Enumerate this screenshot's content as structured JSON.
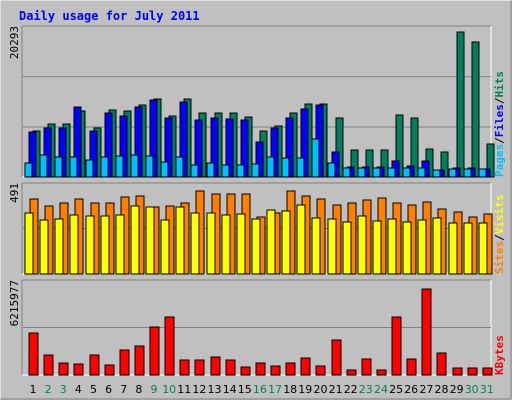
{
  "colors": {
    "background": "#c0c0c0",
    "title": "#0000ff",
    "hits": "#00805c",
    "files": "#0000ff",
    "pages": "#00c0ff",
    "visits": "#ffff00",
    "sites": "#ff8000",
    "kbytes": "#ff0000",
    "weekend_label": "#00805c",
    "weekday_label": "#000000",
    "slash": "#000000"
  },
  "chart_data": {
    "type": "bar",
    "title": "Daily usage for July 2011",
    "categories": [
      "1",
      "2",
      "3",
      "4",
      "5",
      "6",
      "7",
      "8",
      "9",
      "10",
      "11",
      "12",
      "13",
      "14",
      "15",
      "16",
      "17",
      "18",
      "19",
      "20",
      "21",
      "22",
      "23",
      "24",
      "25",
      "26",
      "27",
      "28",
      "29",
      "30",
      "31"
    ],
    "weekend_days": [
      "2",
      "3",
      "9",
      "10",
      "16",
      "17",
      "23",
      "24",
      "30",
      "31"
    ],
    "panels": [
      {
        "id": "hits_files_pages",
        "max_label": "20293",
        "ymax": 20293,
        "legend": [
          {
            "text": "Pages",
            "color": "#00c0ff"
          },
          {
            "text": "/",
            "color": "#000000"
          },
          {
            "text": "Files",
            "color": "#0000ff"
          },
          {
            "text": "/",
            "color": "#000000"
          },
          {
            "text": "Hits",
            "color": "#00805c"
          }
        ],
        "series": [
          {
            "name": "Hits",
            "color": "#00805c",
            "values": [
              6400,
              7300,
              7300,
              9100,
              6800,
              9300,
              9100,
              10000,
              10800,
              8400,
              10800,
              8800,
              8800,
              8800,
              8300,
              6400,
              7100,
              8800,
              10100,
              10100,
              8200,
              3700,
              3700,
              3700,
              8600,
              8200,
              3900,
              3500,
              20000,
              18700,
              4500
            ]
          },
          {
            "name": "Files",
            "color": "#0000ff",
            "values": [
              6200,
              6800,
              6800,
              9600,
              6300,
              8800,
              8400,
              9700,
              10600,
              8100,
              10300,
              7900,
              8200,
              8000,
              7900,
              4900,
              6700,
              8100,
              9400,
              9900,
              3400,
              1400,
              1400,
              1400,
              2200,
              1500,
              2200,
              1000,
              1200,
              1200,
              1100
            ]
          },
          {
            "name": "Pages",
            "color": "#00c0ff",
            "values": [
              1900,
              3000,
              2700,
              2700,
              2300,
              2700,
              2900,
              3000,
              2900,
              2100,
              2800,
              1700,
              1900,
              1700,
              1600,
              1800,
              2700,
              2600,
              2600,
              5300,
              1900,
              1200,
              1200,
              1200,
              1300,
              1200,
              1200,
              1000,
              1100,
              1100,
              1100
            ]
          }
        ]
      },
      {
        "id": "visits_sites",
        "max_label": "491",
        "ymax": 491,
        "legend": [
          {
            "text": "Sites",
            "color": "#ff8000"
          },
          {
            "text": "/",
            "color": "#000000"
          },
          {
            "text": "Visits",
            "color": "#ffff00"
          }
        ],
        "series": [
          {
            "name": "Sites",
            "color": "#ff8000",
            "values": [
              422,
              382,
              403,
              422,
              403,
              403,
              433,
              443,
              376,
              382,
              402,
              470,
              453,
              453,
              452,
              321,
              346,
              470,
              443,
              421,
              391,
              399,
              419,
              427,
              403,
              387,
              407,
              367,
              351,
              321,
              337
            ]
          },
          {
            "name": "Visits",
            "color": "#ffff00",
            "values": [
              346,
              305,
              312,
              335,
              328,
              325,
              335,
              382,
              380,
              302,
              380,
              342,
              342,
              332,
              338,
              310,
              362,
              357,
              388,
              316,
              312,
              294,
              327,
              300,
              310,
              295,
              306,
              315,
              290,
              286,
              290
            ]
          }
        ]
      },
      {
        "id": "kbytes",
        "max_label": "6215977",
        "ymax": 6215977,
        "legend": [
          {
            "text": "KBytes",
            "color": "#ff0000"
          }
        ],
        "series": [
          {
            "name": "KBytes",
            "color": "#ff0000",
            "values": [
              2900000,
              1350000,
              850000,
              780000,
              1350000,
              700000,
              1680000,
              2000000,
              3270000,
              3980000,
              1000000,
              1040000,
              1260000,
              1000000,
              520000,
              810000,
              600000,
              850000,
              1130000,
              620000,
              2380000,
              340000,
              1090000,
              360000,
              3990000,
              1070000,
              5900000,
              1520000,
              460000,
              460000,
              460000
            ]
          }
        ]
      }
    ]
  }
}
